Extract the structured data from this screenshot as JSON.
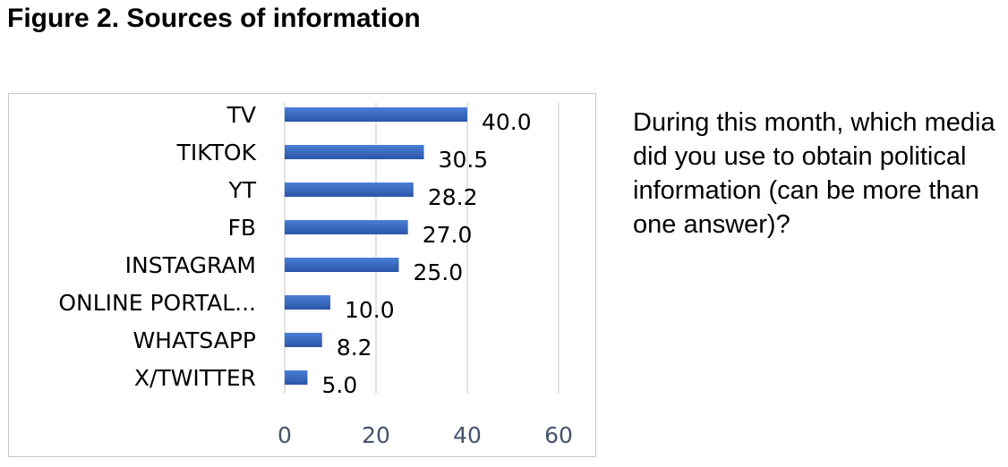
{
  "figure_title": "Figure 2. Sources of information",
  "question_text": "During this month, which media did you use to obtain political information (can be more than one answer)?",
  "chart_data": {
    "type": "bar",
    "orientation": "horizontal",
    "title": "",
    "xlabel": "",
    "ylabel": "",
    "categories": [
      "TV",
      "TIKTOK",
      "YT",
      "FB",
      "INSTAGRAM",
      "ONLINE PORTAL...",
      "WHATSAPP",
      "X/TWITTER"
    ],
    "values": [
      40.0,
      30.5,
      28.2,
      27.0,
      25.0,
      10.0,
      8.2,
      5.0
    ],
    "value_labels": [
      "40.0",
      "30.5",
      "28.2",
      "27.0",
      "25.0",
      "10.0",
      "8.2",
      "5.0"
    ],
    "xlim": [
      0,
      60
    ],
    "xticks": [
      0,
      20,
      40,
      60
    ],
    "xtick_labels": [
      "0",
      "20",
      "40",
      "60"
    ],
    "grid": "vertical",
    "legend": "none",
    "colors": {
      "bar": "#3a6cc6",
      "bar_dark": "#2a55a8",
      "grid": "#d9d9d9",
      "tick": "#44546a"
    }
  }
}
